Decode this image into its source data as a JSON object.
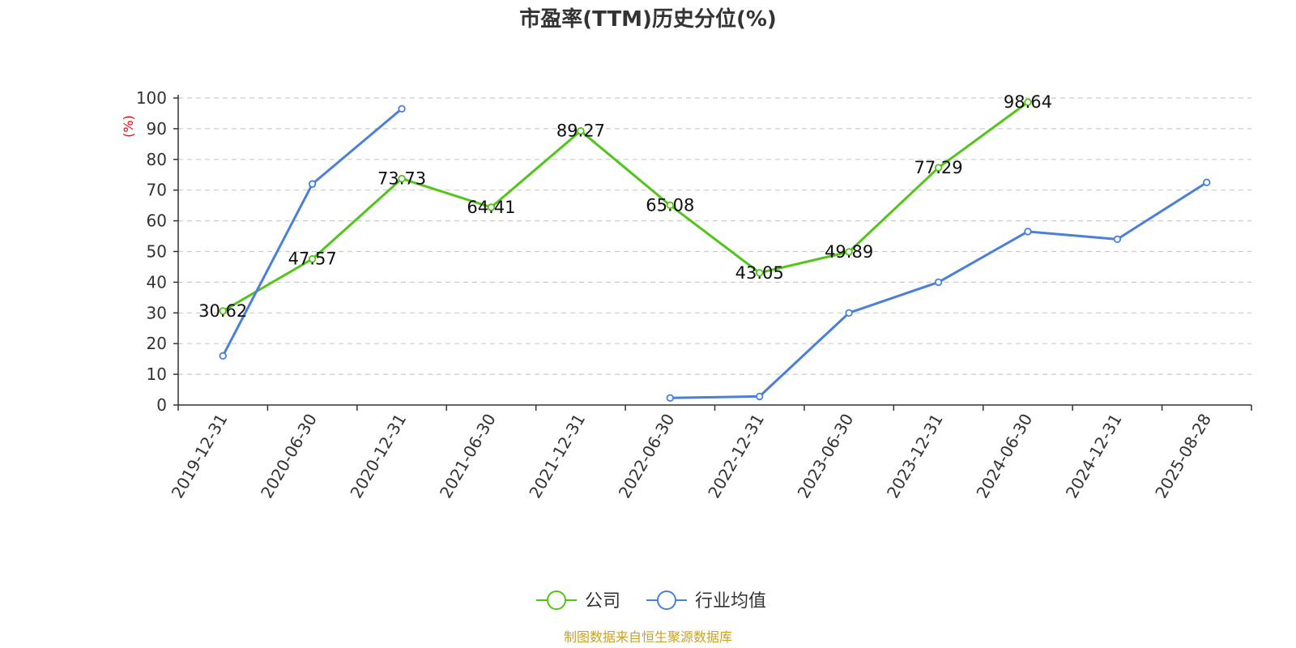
{
  "title": "市盈率(TTM)历史分位(%)",
  "source": "制图数据来自恒生聚源数据库",
  "chart_data": {
    "type": "line",
    "title": "市盈率(TTM)历史分位(%)",
    "y_unit": "(%)",
    "ylim": [
      0,
      100
    ],
    "y_ticks": [
      0,
      10,
      20,
      30,
      40,
      50,
      60,
      70,
      80,
      90,
      100
    ],
    "grid": true,
    "legend_position": "bottom-center",
    "categories": [
      "2019-12-31",
      "2020-06-30",
      "2020-12-31",
      "2021-06-30",
      "2021-12-31",
      "2022-06-30",
      "2022-12-31",
      "2023-06-30",
      "2023-12-31",
      "2024-06-30",
      "2024-12-31",
      "2025-08-28"
    ],
    "series": [
      {
        "name": "公司",
        "color": "#52c41a",
        "show_labels": true,
        "values": [
          30.62,
          47.57,
          73.73,
          64.41,
          89.27,
          65.08,
          43.05,
          49.89,
          77.29,
          98.64,
          null,
          null
        ]
      },
      {
        "name": "行业均值",
        "color": "#4a7fdb",
        "show_labels": false,
        "values": [
          16,
          72,
          96.5,
          null,
          null,
          2.3,
          2.8,
          30,
          40,
          56.5,
          54,
          72.5
        ]
      }
    ]
  }
}
